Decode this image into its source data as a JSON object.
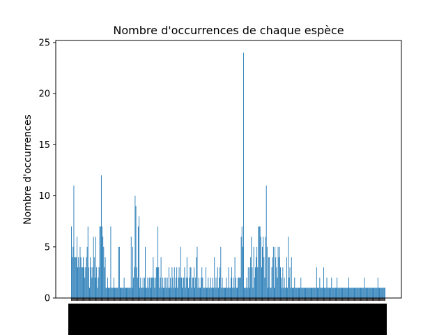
{
  "chart_data": {
    "type": "bar",
    "title": "Nombre d'occurrences de chaque espèce",
    "xlabel": "",
    "ylabel": "Nombre d'occurrences",
    "ylim": [
      0,
      25.2
    ],
    "yticks": [
      0,
      5,
      10,
      15,
      20,
      25
    ],
    "grid": false,
    "bar_color": "#1f77b4",
    "note": "Category tick labels are densely overlapped and unreadable in the source; values estimated from the bar heights.",
    "values": [
      7,
      4,
      5,
      11,
      4,
      4,
      4,
      6,
      3,
      4,
      3,
      5,
      4,
      3,
      3,
      4,
      3,
      2,
      3,
      4,
      5,
      7,
      3,
      1,
      4,
      3,
      2,
      3,
      6,
      4,
      2,
      6,
      3,
      1,
      2,
      3,
      7,
      7,
      12,
      7,
      6,
      5,
      3,
      4,
      1,
      1,
      2,
      1,
      1,
      1,
      7,
      1,
      1,
      1,
      2,
      1,
      1,
      1,
      1,
      1,
      5,
      5,
      1,
      1,
      1,
      1,
      1,
      2,
      1,
      1,
      1,
      1,
      1,
      1,
      1,
      1,
      6,
      1,
      5,
      2,
      3,
      10,
      9,
      3,
      2,
      7,
      8,
      1,
      2,
      1,
      1,
      2,
      1,
      2,
      5,
      1,
      1,
      2,
      1,
      2,
      2,
      1,
      2,
      2,
      4,
      2,
      1,
      2,
      3,
      3,
      7,
      3,
      1,
      2,
      4,
      1,
      2,
      1,
      2,
      1,
      2,
      1,
      2,
      1,
      3,
      1,
      2,
      1,
      3,
      2,
      1,
      3,
      1,
      2,
      3,
      1,
      2,
      3,
      2,
      5,
      2,
      1,
      2,
      2,
      3,
      1,
      2,
      4,
      2,
      1,
      2,
      3,
      3,
      1,
      2,
      2,
      3,
      1,
      2,
      4,
      5,
      1,
      2,
      1,
      1,
      2,
      3,
      2,
      1,
      1,
      1,
      3,
      1,
      1,
      2,
      1,
      1,
      2,
      1,
      1,
      2,
      1,
      4,
      1,
      2,
      1,
      3,
      1,
      2,
      3,
      5,
      1,
      2,
      1,
      1,
      1,
      1,
      2,
      1,
      1,
      3,
      1,
      1,
      2,
      3,
      1,
      2,
      1,
      4,
      2,
      1,
      1,
      2,
      2,
      2,
      2,
      6,
      7,
      5,
      24,
      1,
      1,
      1,
      2,
      1,
      3,
      1,
      3,
      4,
      6,
      3,
      1,
      5,
      2,
      3,
      4,
      5,
      3,
      7,
      7,
      7,
      6,
      3,
      5,
      6,
      4,
      2,
      6,
      11,
      5,
      1,
      4,
      4,
      1,
      1,
      3,
      4,
      5,
      1,
      5,
      4,
      3,
      2,
      5,
      4,
      5,
      3,
      2,
      1,
      3,
      1,
      2,
      1,
      1,
      4,
      1,
      6,
      2,
      3,
      1,
      4,
      1,
      1,
      1,
      2,
      1,
      1,
      1,
      1,
      1,
      1,
      1,
      2,
      1,
      1,
      1,
      1,
      1,
      1,
      1,
      1,
      1,
      1,
      1,
      1,
      1,
      1,
      1,
      1,
      1,
      1,
      1,
      3,
      1,
      1,
      1,
      2,
      1,
      1,
      1,
      1,
      3,
      1,
      1,
      1,
      2,
      1,
      1,
      1,
      1,
      1,
      2,
      1,
      1,
      1,
      1,
      1,
      1,
      2,
      1,
      1,
      1,
      1,
      1,
      1,
      1,
      1,
      1,
      1,
      1,
      1,
      1,
      1,
      2,
      1,
      1,
      1,
      1,
      1,
      1,
      1,
      1,
      1,
      1,
      1,
      1,
      1,
      1,
      1,
      1,
      1,
      1,
      1,
      2,
      1,
      1,
      1,
      1,
      1,
      1,
      1,
      1,
      1,
      1,
      1,
      1,
      1,
      1,
      1,
      1,
      2,
      1,
      1,
      1,
      1,
      1,
      1,
      1,
      1,
      1
    ]
  }
}
